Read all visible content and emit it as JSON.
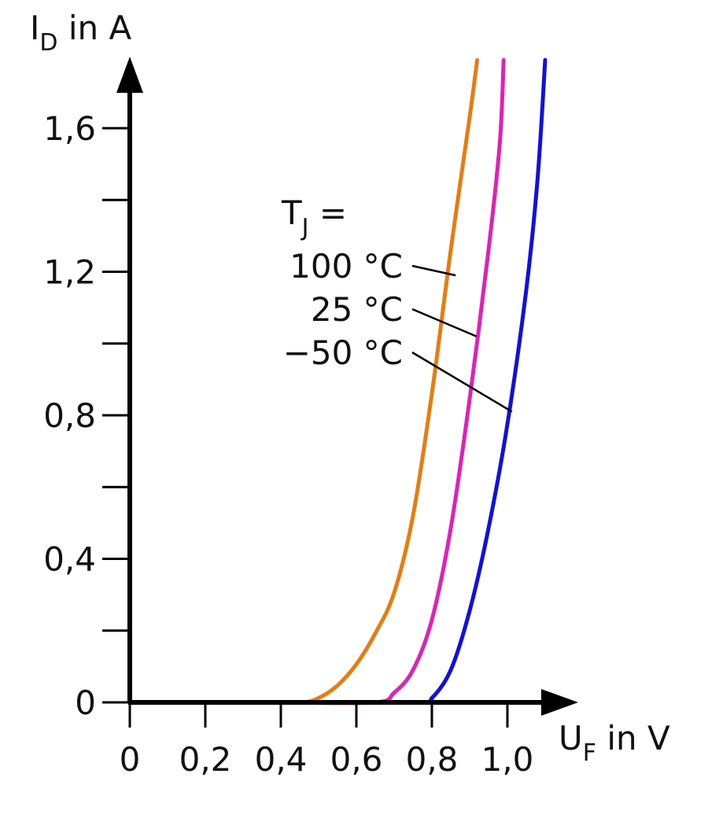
{
  "chart_data": {
    "type": "line",
    "y_title": {
      "main": "I",
      "sub": "D",
      "unit": " in A"
    },
    "x_title": {
      "main": "U",
      "sub": "F",
      "unit": " in V"
    },
    "xlim": [
      0,
      1.1
    ],
    "ylim": [
      0,
      1.75
    ],
    "x_ticks": [
      {
        "value": 0,
        "label": "0"
      },
      {
        "value": 0.2,
        "label": "0,2"
      },
      {
        "value": 0.4,
        "label": "0,4"
      },
      {
        "value": 0.6,
        "label": "0,6"
      },
      {
        "value": 0.8,
        "label": "0,8"
      },
      {
        "value": 1.0,
        "label": "1,0"
      }
    ],
    "y_ticks": [
      {
        "value": 0,
        "label": "0"
      },
      {
        "value": 0.2,
        "label": ""
      },
      {
        "value": 0.4,
        "label": "0,4"
      },
      {
        "value": 0.6,
        "label": ""
      },
      {
        "value": 0.8,
        "label": "0,8"
      },
      {
        "value": 1.0,
        "label": ""
      },
      {
        "value": 1.2,
        "label": "1,2"
      },
      {
        "value": 1.4,
        "label": ""
      },
      {
        "value": 1.6,
        "label": "1,6"
      }
    ],
    "legend": {
      "title_main": "T",
      "title_sub": "J",
      "title_rest": " =",
      "placement": "center-right"
    },
    "series": [
      {
        "name": "100 °C",
        "color": "#e87d0d",
        "label_point": [
          0.863,
          1.19
        ],
        "points": [
          [
            0,
            0
          ],
          [
            0.2,
            0
          ],
          [
            0.4,
            0
          ],
          [
            0.46,
            0
          ],
          [
            0.5,
            0.012
          ],
          [
            0.55,
            0.047
          ],
          [
            0.6,
            0.106
          ],
          [
            0.65,
            0.192
          ],
          [
            0.7,
            0.305
          ],
          [
            0.75,
            0.52
          ],
          [
            0.8,
            0.86
          ],
          [
            0.85,
            1.26
          ],
          [
            0.9,
            1.63
          ],
          [
            0.92,
            1.79
          ]
        ]
      },
      {
        "name": "25 °C",
        "color": "#e020b8",
        "label_point": [
          0.918,
          1.02
        ],
        "points": [
          [
            0,
            0
          ],
          [
            0.2,
            0
          ],
          [
            0.4,
            0
          ],
          [
            0.65,
            0
          ],
          [
            0.7,
            0.027
          ],
          [
            0.75,
            0.09
          ],
          [
            0.8,
            0.23
          ],
          [
            0.85,
            0.485
          ],
          [
            0.9,
            0.845
          ],
          [
            0.95,
            1.26
          ],
          [
            0.98,
            1.56
          ],
          [
            0.99,
            1.79
          ]
        ]
      },
      {
        "name": "−50 °C",
        "color": "#1010e0",
        "label_point": [
          1.012,
          0.81
        ],
        "points": [
          [
            0,
            0
          ],
          [
            0.2,
            0
          ],
          [
            0.4,
            0
          ],
          [
            0.77,
            0
          ],
          [
            0.8,
            0.012
          ],
          [
            0.85,
            0.09
          ],
          [
            0.9,
            0.255
          ],
          [
            0.95,
            0.485
          ],
          [
            1.0,
            0.775
          ],
          [
            1.05,
            1.15
          ],
          [
            1.08,
            1.46
          ],
          [
            1.1,
            1.79
          ]
        ]
      }
    ],
    "colors": {
      "axis": "#000000",
      "text": "#111111"
    }
  }
}
